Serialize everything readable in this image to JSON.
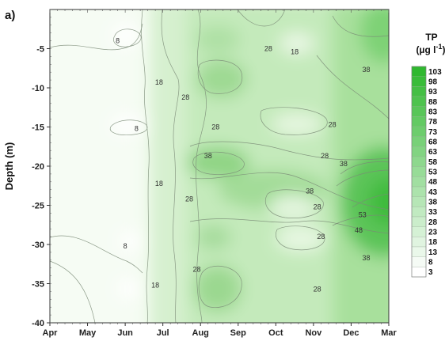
{
  "panel_label": "a)",
  "chart_data": {
    "type": "heatmap",
    "title": "",
    "xlabel": "",
    "ylabel": "Depth (m)",
    "x_ticks": [
      "Apr",
      "May",
      "Jun",
      "Jul",
      "Aug",
      "Sep",
      "Oct",
      "Nov",
      "Dec",
      "Mar"
    ],
    "y_ticks": [
      -5,
      -10,
      -15,
      -20,
      -25,
      -30,
      -35,
      -40
    ],
    "ylim": [
      -40,
      0
    ],
    "legend": {
      "title_line1": "TP",
      "title_line2": "(µg l",
      "title_sup": "-1",
      "title_close": ")",
      "placement": "right",
      "levels": [
        3,
        8,
        13,
        18,
        23,
        28,
        33,
        38,
        43,
        48,
        53,
        58,
        63,
        68,
        73,
        78,
        83,
        88,
        93,
        98,
        103
      ],
      "color_low": "#ffffff",
      "color_high": "#2fb82f"
    },
    "contour_labels": [
      {
        "text": "8",
        "month": 1.8,
        "depth": -4.3
      },
      {
        "text": "8",
        "month": 2.3,
        "depth": -15.5
      },
      {
        "text": "8",
        "month": 2.0,
        "depth": -30.5
      },
      {
        "text": "18",
        "month": 2.9,
        "depth": -9.6
      },
      {
        "text": "18",
        "month": 2.9,
        "depth": -22.5
      },
      {
        "text": "18",
        "month": 2.8,
        "depth": -35.5
      },
      {
        "text": "28",
        "month": 3.6,
        "depth": -11.5
      },
      {
        "text": "28",
        "month": 4.4,
        "depth": -15.3
      },
      {
        "text": "28",
        "month": 3.7,
        "depth": -24.5
      },
      {
        "text": "28",
        "month": 3.9,
        "depth": -33.5
      },
      {
        "text": "28",
        "month": 5.8,
        "depth": -5.3
      },
      {
        "text": "18",
        "month": 6.5,
        "depth": -5.7
      },
      {
        "text": "38",
        "month": 8.4,
        "depth": -8.0
      },
      {
        "text": "28",
        "month": 7.5,
        "depth": -15.0
      },
      {
        "text": "28",
        "month": 7.3,
        "depth": -19.0
      },
      {
        "text": "38",
        "month": 4.2,
        "depth": -19.0
      },
      {
        "text": "38",
        "month": 7.8,
        "depth": -20.0
      },
      {
        "text": "38",
        "month": 6.9,
        "depth": -23.5
      },
      {
        "text": "28",
        "month": 7.1,
        "depth": -25.5
      },
      {
        "text": "53",
        "month": 8.3,
        "depth": -26.5
      },
      {
        "text": "48",
        "month": 8.2,
        "depth": -28.5
      },
      {
        "text": "28",
        "month": 7.2,
        "depth": -29.3
      },
      {
        "text": "38",
        "month": 8.4,
        "depth": -32.0
      },
      {
        "text": "28",
        "month": 7.1,
        "depth": -36.0
      }
    ]
  }
}
